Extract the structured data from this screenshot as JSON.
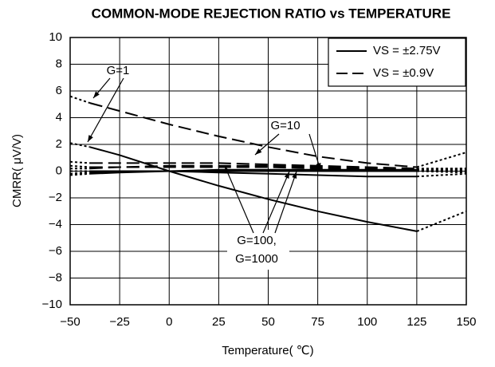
{
  "chart_data": {
    "type": "line",
    "title": "COMMON-MODE REJECTION RATIO vs TEMPERATURE",
    "x_label": "Temperature( ℃)",
    "y_label": "CMRR( μV/V)",
    "x": [
      -50,
      -40,
      -25,
      0,
      25,
      50,
      75,
      100,
      125,
      150
    ],
    "xlim": [
      -50,
      150
    ],
    "xticks": [
      {
        "value": -50,
        "label": "−50"
      },
      {
        "value": -25,
        "label": "−25"
      },
      0,
      25,
      50,
      75,
      100,
      125,
      150
    ],
    "ylim": [
      -10,
      10
    ],
    "yticks": [
      {
        "value": -10,
        "label": "−10"
      },
      {
        "value": -8,
        "label": "−8"
      },
      {
        "value": -6,
        "label": "−6"
      },
      {
        "value": -4,
        "label": "−4"
      },
      {
        "value": -2,
        "label": "−2"
      },
      0,
      2,
      4,
      6,
      8,
      10
    ],
    "grid": true,
    "legend": "upper right",
    "series": [
      {
        "name": "VS = ±2.75V",
        "color": "#000000",
        "style": "solid",
        "curves": [
          [
            2.1,
            1.8,
            1.2,
            0,
            -1.1,
            -2.1,
            -3.0,
            -3.8,
            -4.5,
            -3.0
          ],
          [
            0,
            0,
            0,
            0,
            -0.1,
            -0.2,
            -0.3,
            -0.4,
            -0.4,
            -0.2
          ],
          [
            -0.3,
            -0.2,
            -0.1,
            0,
            0,
            0,
            0,
            0,
            0,
            0.1
          ],
          [
            -0.2,
            -0.1,
            0,
            0,
            0.1,
            0.1,
            0.1,
            0.1,
            0.1,
            0.2
          ]
        ]
      },
      {
        "name": "VS = ±0.9V",
        "color": "#000000",
        "style": "dashed",
        "curves": [
          [
            5.6,
            5.1,
            4.5,
            3.5,
            2.6,
            1.8,
            1.1,
            0.6,
            0.3,
            1.4
          ],
          [
            0.7,
            0.6,
            0.6,
            0.6,
            0.6,
            0.5,
            0.4,
            0.3,
            0.2,
            0.2
          ],
          [
            0.4,
            0.3,
            0.3,
            0.4,
            0.4,
            0.4,
            0.3,
            0.2,
            0.1,
            0.0
          ],
          [
            0.2,
            0.2,
            0.3,
            0.3,
            0.3,
            0.3,
            0.2,
            0.1,
            0.0,
            -0.1
          ]
        ]
      }
    ],
    "annotations": [
      "G=1",
      "G=10",
      "G=100,",
      "G=1000"
    ]
  }
}
